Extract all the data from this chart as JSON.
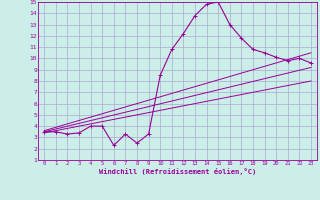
{
  "xlabel": "Windchill (Refroidissement éolien,°C)",
  "bg_color": "#cceee8",
  "grid_color": "#aaaacc",
  "line_color": "#990099",
  "xlim": [
    -0.5,
    23.5
  ],
  "ylim": [
    1,
    15
  ],
  "xticks": [
    0,
    1,
    2,
    3,
    4,
    5,
    6,
    7,
    8,
    9,
    10,
    11,
    12,
    13,
    14,
    15,
    16,
    17,
    18,
    19,
    20,
    21,
    22,
    23
  ],
  "yticks": [
    1,
    2,
    3,
    4,
    5,
    6,
    7,
    8,
    9,
    10,
    11,
    12,
    13,
    14,
    15
  ],
  "main_x": [
    0,
    1,
    2,
    3,
    4,
    5,
    6,
    7,
    8,
    9,
    10,
    11,
    12,
    13,
    14,
    15,
    16,
    17,
    18,
    19,
    20,
    21,
    22,
    23
  ],
  "main_y": [
    3.5,
    3.5,
    3.3,
    3.4,
    4.0,
    4.0,
    2.3,
    3.3,
    2.5,
    3.3,
    8.5,
    10.8,
    12.2,
    13.8,
    14.8,
    15.0,
    13.0,
    11.8,
    10.8,
    10.5,
    10.1,
    9.8,
    10.0,
    9.6
  ],
  "line2_x": [
    0,
    23
  ],
  "line2_y": [
    3.6,
    10.5
  ],
  "line3_x": [
    0,
    23
  ],
  "line3_y": [
    3.5,
    9.2
  ],
  "line4_x": [
    0,
    23
  ],
  "line4_y": [
    3.4,
    8.0
  ]
}
